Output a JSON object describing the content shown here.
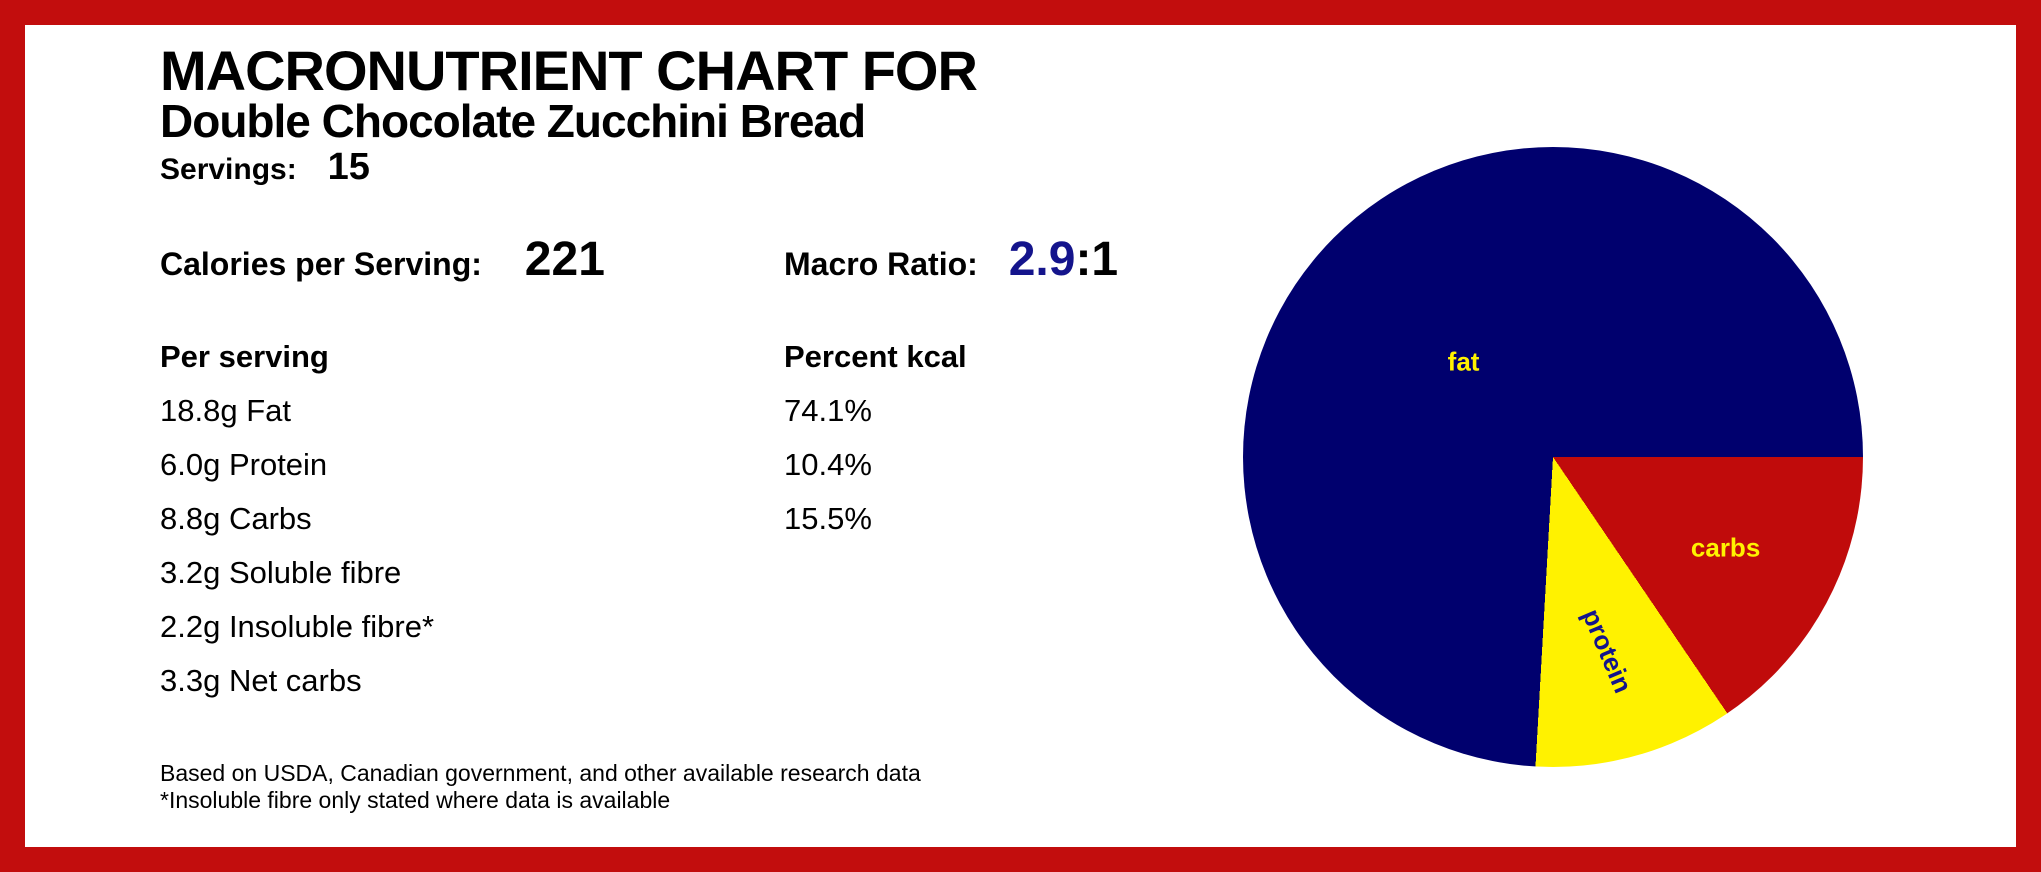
{
  "frame": {
    "border_color": "#C20D0D"
  },
  "header": {
    "title": "MACRONUTRIENT CHART FOR",
    "subtitle": "Double Chocolate Zucchini Bread",
    "servings_label": "Servings:",
    "servings_value": "15",
    "calories_label": "Calories per Serving:",
    "calories_value": "221",
    "macro_ratio_label": "Macro Ratio:",
    "macro_ratio_value": "2.9",
    "macro_ratio_suffix": ":1",
    "macro_ratio_value_color": "#14148C"
  },
  "nutrition": {
    "per_serving_header": "Per serving",
    "percent_header": "Percent kcal",
    "rows": [
      {
        "amount": "18.8g Fat",
        "percent": "74.1%"
      },
      {
        "amount": "6.0g Protein",
        "percent": "10.4%"
      },
      {
        "amount": "8.8g Carbs",
        "percent": "15.5%"
      },
      {
        "amount": "3.2g Soluble fibre",
        "percent": ""
      },
      {
        "amount": "2.2g Insoluble fibre*",
        "percent": ""
      },
      {
        "amount": "3.3g Net carbs",
        "percent": ""
      }
    ]
  },
  "footer": {
    "line1": "Based on USDA, Canadian government, and other available research data",
    "line2": "*Insoluble fibre only stated where data is available"
  },
  "chart_data": {
    "type": "pie",
    "categories": [
      "fat",
      "protein",
      "carbs"
    ],
    "values": [
      74.1,
      10.4,
      15.5
    ],
    "unit": "percent of kcal",
    "start": "east",
    "direction": "counterclockwise",
    "legend_position": "labels-inside-slices",
    "slices": [
      {
        "label": "fat",
        "percent": 74.1,
        "color": "#00006E",
        "label_color": "#FFF200",
        "label_r": 0.42,
        "label_rotate_deg": 0
      },
      {
        "label": "protein",
        "percent": 10.4,
        "color": "#FFF200",
        "label_color": "#14148C",
        "label_r": 0.65,
        "label_rotate_deg": 67
      },
      {
        "label": "carbs",
        "percent": 15.5,
        "color": "#C00B0B",
        "label_color": "#FFF200",
        "label_r": 0.63,
        "label_rotate_deg": 0
      }
    ]
  }
}
